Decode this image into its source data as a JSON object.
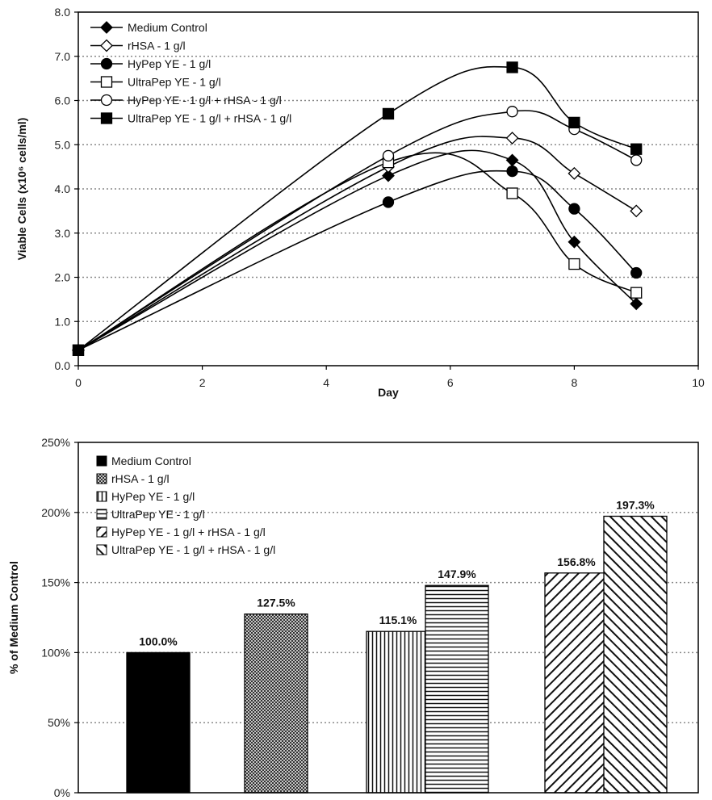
{
  "chart_data": [
    {
      "type": "line",
      "xlabel": "Day",
      "ylabel": "Viable Cells (x10⁶ cells/ml)",
      "xlim": [
        0,
        10
      ],
      "ylim": [
        0,
        8
      ],
      "x_ticks": [
        "0",
        "2",
        "4",
        "6",
        "8",
        "10"
      ],
      "y_ticks": [
        "0.0",
        "1.0",
        "2.0",
        "3.0",
        "4.0",
        "5.0",
        "6.0",
        "7.0",
        "8.0"
      ],
      "grid": "horizontal dotted",
      "legend_position": "top-left",
      "x": [
        0,
        5,
        7,
        8,
        9
      ],
      "series": [
        {
          "name": "Medium Control",
          "marker": "filled-diamond",
          "values": [
            0.35,
            4.3,
            4.65,
            2.8,
            1.4
          ]
        },
        {
          "name": "rHSA - 1 g/l",
          "marker": "open-diamond",
          "values": [
            0.35,
            4.5,
            5.15,
            4.35,
            3.5
          ]
        },
        {
          "name": "HyPep YE - 1 g/l",
          "marker": "filled-circle",
          "values": [
            0.35,
            3.7,
            4.4,
            3.55,
            2.1
          ]
        },
        {
          "name": "UltraPep YE - 1 g/l",
          "marker": "open-square",
          "values": [
            0.35,
            4.6,
            3.9,
            2.3,
            1.65
          ]
        },
        {
          "name": "HyPep YE - 1 g/l + rHSA - 1 g/l",
          "marker": "open-circle",
          "values": [
            0.35,
            4.75,
            5.75,
            5.35,
            4.65
          ]
        },
        {
          "name": "UltraPep YE - 1 g/l + rHSA - 1 g/l",
          "marker": "filled-square",
          "values": [
            0.35,
            5.7,
            6.75,
            5.5,
            4.9
          ]
        }
      ]
    },
    {
      "type": "bar",
      "ylabel": "% of Medium Control",
      "ylim": [
        0,
        250
      ],
      "y_ticks": [
        "0%",
        "50%",
        "100%",
        "150%",
        "200%",
        "250%"
      ],
      "grid": "horizontal dotted",
      "legend_position": "top-left",
      "series": [
        {
          "name": "Medium Control",
          "pattern": "solid",
          "value": 100.0,
          "label": "100.0%"
        },
        {
          "name": "rHSA - 1 g/l",
          "pattern": "crosshatch",
          "value": 127.5,
          "label": "127.5%"
        },
        {
          "name": "HyPep YE - 1 g/l",
          "pattern": "vertical",
          "value": 115.1,
          "label": "115.1%"
        },
        {
          "name": "UltraPep YE - 1 g/l",
          "pattern": "horizontal",
          "value": 147.9,
          "label": "147.9%"
        },
        {
          "name": "HyPep YE - 1 g/l + rHSA - 1 g/l",
          "pattern": "diagonal-right",
          "value": 156.8,
          "label": "156.8%"
        },
        {
          "name": "UltraPep YE - 1 g/l + rHSA - 1 g/l",
          "pattern": "diagonal-left",
          "value": 197.3,
          "label": "197.3%"
        }
      ]
    }
  ]
}
